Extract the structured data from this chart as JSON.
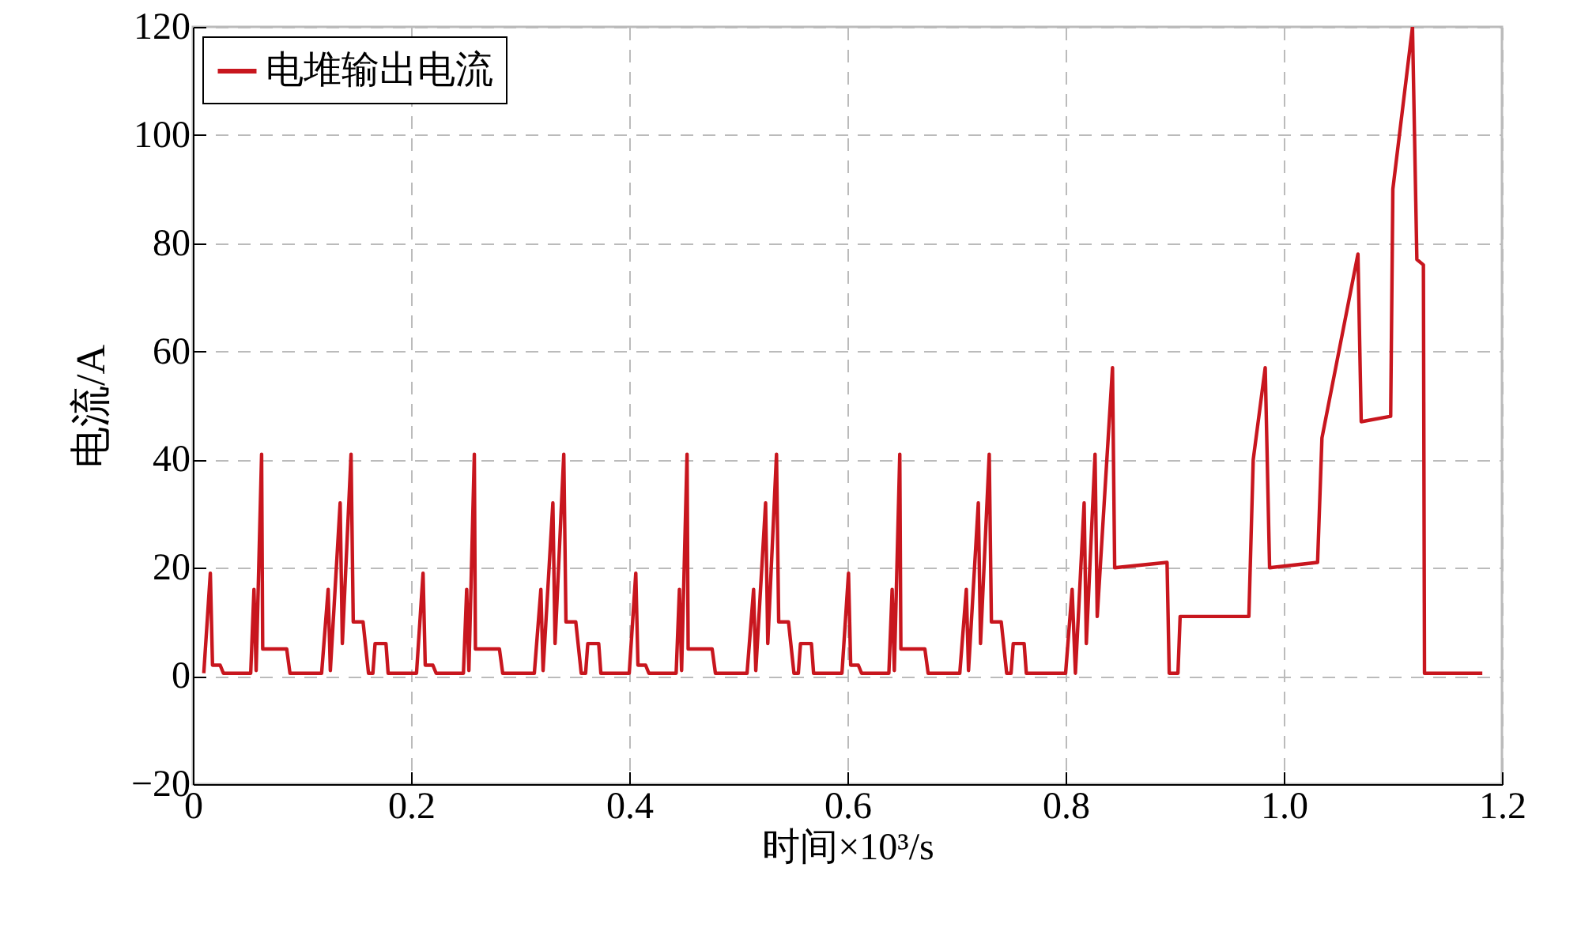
{
  "chart_data": {
    "type": "line",
    "xlabel": "时间×10³/s",
    "ylabel": "电流/A",
    "xlim": [
      0,
      1.2
    ],
    "xticks": [
      0,
      0.2,
      0.4,
      0.6,
      0.8,
      {
        "value": 1,
        "label": "1.0"
      },
      1.2
    ],
    "ylim": [
      -20,
      120
    ],
    "yticks": [
      -20,
      0,
      20,
      40,
      60,
      80,
      100,
      120
    ],
    "grid": true,
    "legend": "top left",
    "marker": "none",
    "line_style": "solid",
    "series": [
      {
        "name": "电堆输出电流",
        "color": "#c8161e",
        "x": [
          0.01,
          0.016,
          0.018,
          0.025,
          0.028,
          0.053,
          0.056,
          0.058,
          0.063,
          0.064,
          0.086,
          0.089,
          0.118,
          0.124,
          0.126,
          0.135,
          0.137,
          0.145,
          0.147,
          0.156,
          0.161,
          0.165,
          0.167,
          0.177,
          0.179,
          0.205,
          0.211,
          0.213,
          0.22,
          0.223,
          0.248,
          0.251,
          0.253,
          0.258,
          0.259,
          0.281,
          0.284,
          0.313,
          0.319,
          0.321,
          0.33,
          0.332,
          0.34,
          0.342,
          0.351,
          0.356,
          0.36,
          0.362,
          0.372,
          0.374,
          0.4,
          0.406,
          0.408,
          0.415,
          0.418,
          0.443,
          0.446,
          0.448,
          0.453,
          0.454,
          0.476,
          0.479,
          0.508,
          0.514,
          0.516,
          0.525,
          0.527,
          0.535,
          0.537,
          0.546,
          0.551,
          0.555,
          0.557,
          0.567,
          0.569,
          0.595,
          0.601,
          0.603,
          0.61,
          0.613,
          0.638,
          0.641,
          0.643,
          0.648,
          0.649,
          0.671,
          0.674,
          0.703,
          0.709,
          0.711,
          0.72,
          0.722,
          0.73,
          0.732,
          0.741,
          0.746,
          0.75,
          0.752,
          0.762,
          0.764,
          0.8,
          0.806,
          0.809,
          0.817,
          0.819,
          0.827,
          0.829,
          0.843,
          0.845,
          0.893,
          0.895,
          0.903,
          0.905,
          0.968,
          0.972,
          0.983,
          0.987,
          1.031,
          1.035,
          1.068,
          1.071,
          1.098,
          1.1,
          1.118,
          1.122,
          1.128,
          1.129,
          1.182
        ],
        "values": [
          0.5,
          19,
          2,
          2,
          0.5,
          0.5,
          16,
          1,
          41,
          5,
          5,
          0.5,
          0.5,
          16,
          1,
          32,
          6,
          41,
          10,
          10,
          0.5,
          0.5,
          6,
          6,
          0.5,
          0.5,
          19,
          2,
          2,
          0.5,
          0.5,
          16,
          1,
          41,
          5,
          5,
          0.5,
          0.5,
          16,
          1,
          32,
          6,
          41,
          10,
          10,
          0.5,
          0.5,
          6,
          6,
          0.5,
          0.5,
          19,
          2,
          2,
          0.5,
          0.5,
          16,
          1,
          41,
          5,
          5,
          0.5,
          0.5,
          16,
          1,
          32,
          6,
          41,
          10,
          10,
          0.5,
          0.5,
          6,
          6,
          0.5,
          0.5,
          19,
          2,
          2,
          0.5,
          0.5,
          16,
          1,
          41,
          5,
          5,
          0.5,
          0.5,
          16,
          1,
          32,
          6,
          41,
          10,
          10,
          0.5,
          0.5,
          6,
          6,
          0.5,
          0.5,
          16,
          0.5,
          32,
          6,
          41,
          11,
          57,
          20,
          21,
          0.5,
          0.5,
          11,
          11,
          40,
          57,
          20,
          21,
          44,
          78,
          47,
          48,
          90,
          120,
          77,
          76,
          0.5,
          0.5
        ]
      }
    ]
  }
}
